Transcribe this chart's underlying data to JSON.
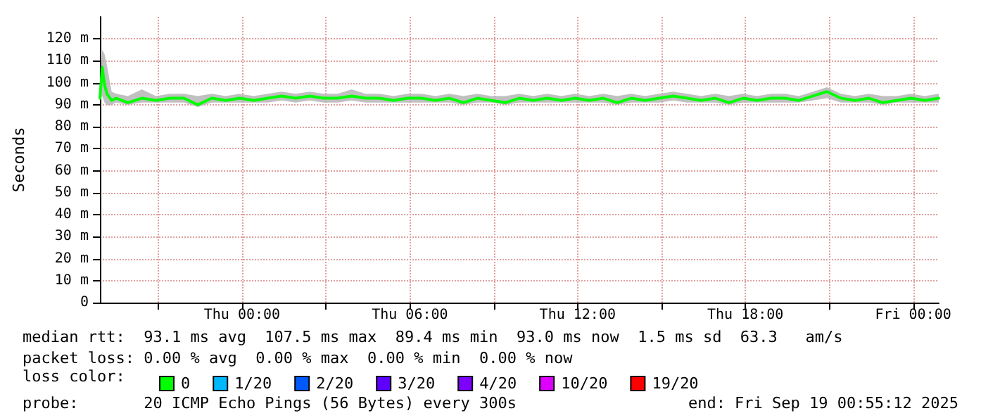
{
  "chart_data": {
    "type": "line",
    "ylabel": "Seconds",
    "legend_title": "loss color:",
    "annotations": [
      "median rtt:  93.1 ms avg  107.5 ms max  89.4 ms min  93.0 ms now  1.5 ms sd  63.3   am/s",
      "packet loss: 0.00 % avg  0.00 % max  0.00 % min  0.00 % now",
      "probe:       20 ICMP Echo Pings (56 Bytes) every 300s",
      "end: Fri Sep 19 00:55:12 2025"
    ],
    "x": [
      "2025-09-17T18:55",
      "2025-09-17T19:00",
      "2025-09-17T19:05",
      "2025-09-17T19:10",
      "2025-09-17T19:20",
      "2025-09-17T19:30",
      "2025-09-17T19:55",
      "2025-09-17T20:25",
      "2025-09-17T20:55",
      "2025-09-17T21:25",
      "2025-09-17T21:55",
      "2025-09-17T22:25",
      "2025-09-17T22:55",
      "2025-09-17T23:25",
      "2025-09-17T23:55",
      "2025-09-18T00:25",
      "2025-09-18T00:55",
      "2025-09-18T01:25",
      "2025-09-18T01:55",
      "2025-09-18T02:25",
      "2025-09-18T02:55",
      "2025-09-18T03:25",
      "2025-09-18T03:55",
      "2025-09-18T04:25",
      "2025-09-18T04:55",
      "2025-09-18T05:25",
      "2025-09-18T05:55",
      "2025-09-18T06:25",
      "2025-09-18T06:55",
      "2025-09-18T07:25",
      "2025-09-18T07:55",
      "2025-09-18T08:25",
      "2025-09-18T08:55",
      "2025-09-18T09:25",
      "2025-09-18T09:55",
      "2025-09-18T10:25",
      "2025-09-18T10:55",
      "2025-09-18T11:25",
      "2025-09-18T11:55",
      "2025-09-18T12:25",
      "2025-09-18T12:55",
      "2025-09-18T13:25",
      "2025-09-18T13:55",
      "2025-09-18T14:25",
      "2025-09-18T14:55",
      "2025-09-18T15:25",
      "2025-09-18T15:55",
      "2025-09-18T16:25",
      "2025-09-18T16:55",
      "2025-09-18T17:25",
      "2025-09-18T17:55",
      "2025-09-18T18:25",
      "2025-09-18T18:55",
      "2025-09-18T19:25",
      "2025-09-18T19:55",
      "2025-09-18T20:25",
      "2025-09-18T20:55",
      "2025-09-18T21:25",
      "2025-09-18T21:55",
      "2025-09-18T22:25",
      "2025-09-18T22:55",
      "2025-09-18T23:25",
      "2025-09-18T23:55",
      "2025-09-19T00:25",
      "2025-09-19T00:55"
    ],
    "series": [
      {
        "name": "0",
        "color": "#00ff00",
        "values": [
          93,
          107,
          99,
          95,
          92,
          93,
          91,
          93,
          92,
          93,
          93,
          90,
          93,
          92,
          93,
          92,
          93,
          94,
          93,
          94,
          93,
          93,
          94,
          93,
          93,
          92,
          93,
          93,
          92,
          93,
          91,
          93,
          92,
          91,
          93,
          92,
          93,
          92,
          93,
          92,
          93,
          91,
          93,
          92,
          93,
          94,
          93,
          92,
          93,
          91,
          93,
          92,
          93,
          93,
          92,
          94,
          96,
          93,
          92,
          93,
          91,
          92,
          93,
          92,
          93
        ],
        "lower": [
          92,
          94,
          91,
          90,
          90,
          91,
          90,
          91,
          91,
          91,
          91,
          89,
          91,
          91,
          91,
          91,
          91,
          92,
          91,
          92,
          91,
          91,
          92,
          91,
          91,
          91,
          91,
          91,
          91,
          91,
          90,
          91,
          91,
          90,
          91,
          91,
          91,
          91,
          91,
          91,
          91,
          90,
          91,
          91,
          91,
          92,
          91,
          91,
          91,
          90,
          91,
          91,
          91,
          91,
          91,
          92,
          93,
          91,
          91,
          91,
          90,
          91,
          91,
          91,
          91
        ],
        "upper": [
          95,
          115,
          113,
          108,
          96,
          95,
          94,
          97,
          94,
          95,
          95,
          94,
          95,
          94,
          95,
          94,
          95,
          96,
          95,
          96,
          95,
          95,
          97,
          95,
          95,
          94,
          95,
          95,
          94,
          95,
          94,
          95,
          94,
          94,
          95,
          94,
          95,
          94,
          95,
          94,
          95,
          94,
          95,
          94,
          95,
          96,
          95,
          94,
          95,
          94,
          95,
          94,
          95,
          95,
          94,
          96,
          98,
          95,
          94,
          95,
          94,
          94,
          95,
          94,
          95
        ]
      },
      {
        "name": "1/20",
        "color": "#00b8ff",
        "values": [
          null,
          null,
          null,
          null,
          null,
          null,
          null,
          null,
          null,
          null,
          null,
          null,
          null,
          null,
          null,
          null,
          null,
          null,
          null,
          null,
          null,
          null,
          null,
          null,
          null,
          null,
          null,
          null,
          null,
          null,
          null,
          null,
          null,
          null,
          null,
          null,
          null,
          null,
          null,
          null,
          null,
          null,
          null,
          null,
          null,
          null,
          null,
          null,
          null,
          null,
          null,
          null,
          null,
          null,
          null,
          null,
          null,
          null,
          null,
          null,
          null,
          null,
          null,
          null,
          null
        ]
      },
      {
        "name": "2/20",
        "color": "#0059ff",
        "values": [
          null,
          null,
          null,
          null,
          null,
          null,
          null,
          null,
          null,
          null,
          null,
          null,
          null,
          null,
          null,
          null,
          null,
          null,
          null,
          null,
          null,
          null,
          null,
          null,
          null,
          null,
          null,
          null,
          null,
          null,
          null,
          null,
          null,
          null,
          null,
          null,
          null,
          null,
          null,
          null,
          null,
          null,
          null,
          null,
          null,
          null,
          null,
          null,
          null,
          null,
          null,
          null,
          null,
          null,
          null,
          null,
          null,
          null,
          null,
          null,
          null,
          null,
          null,
          null,
          null
        ]
      },
      {
        "name": "3/20",
        "color": "#5e00ff",
        "values": [
          null,
          null,
          null,
          null,
          null,
          null,
          null,
          null,
          null,
          null,
          null,
          null,
          null,
          null,
          null,
          null,
          null,
          null,
          null,
          null,
          null,
          null,
          null,
          null,
          null,
          null,
          null,
          null,
          null,
          null,
          null,
          null,
          null,
          null,
          null,
          null,
          null,
          null,
          null,
          null,
          null,
          null,
          null,
          null,
          null,
          null,
          null,
          null,
          null,
          null,
          null,
          null,
          null,
          null,
          null,
          null,
          null,
          null,
          null,
          null,
          null,
          null,
          null,
          null,
          null
        ]
      },
      {
        "name": "4/20",
        "color": "#7e00ff",
        "values": [
          null,
          null,
          null,
          null,
          null,
          null,
          null,
          null,
          null,
          null,
          null,
          null,
          null,
          null,
          null,
          null,
          null,
          null,
          null,
          null,
          null,
          null,
          null,
          null,
          null,
          null,
          null,
          null,
          null,
          null,
          null,
          null,
          null,
          null,
          null,
          null,
          null,
          null,
          null,
          null,
          null,
          null,
          null,
          null,
          null,
          null,
          null,
          null,
          null,
          null,
          null,
          null,
          null,
          null,
          null,
          null,
          null,
          null,
          null,
          null,
          null,
          null,
          null,
          null,
          null
        ]
      },
      {
        "name": "10/20",
        "color": "#dd00ff",
        "values": [
          null,
          null,
          null,
          null,
          null,
          null,
          null,
          null,
          null,
          null,
          null,
          null,
          null,
          null,
          null,
          null,
          null,
          null,
          null,
          null,
          null,
          null,
          null,
          null,
          null,
          null,
          null,
          null,
          null,
          null,
          null,
          null,
          null,
          null,
          null,
          null,
          null,
          null,
          null,
          null,
          null,
          null,
          null,
          null,
          null,
          null,
          null,
          null,
          null,
          null,
          null,
          null,
          null,
          null,
          null,
          null,
          null,
          null,
          null,
          null,
          null,
          null,
          null,
          null,
          null
        ]
      },
      {
        "name": "19/20",
        "color": "#ff0000",
        "values": [
          null,
          null,
          null,
          null,
          null,
          null,
          null,
          null,
          null,
          null,
          null,
          null,
          null,
          null,
          null,
          null,
          null,
          null,
          null,
          null,
          null,
          null,
          null,
          null,
          null,
          null,
          null,
          null,
          null,
          null,
          null,
          null,
          null,
          null,
          null,
          null,
          null,
          null,
          null,
          null,
          null,
          null,
          null,
          null,
          null,
          null,
          null,
          null,
          null,
          null,
          null,
          null,
          null,
          null,
          null,
          null,
          null,
          null,
          null,
          null,
          null,
          null,
          null,
          null,
          null
        ]
      }
    ],
    "xlim": [
      "2025-09-17T18:55",
      "2025-09-19T00:55"
    ],
    "xticks": [
      {
        "value": "2025-09-17T21:00",
        "label": null
      },
      {
        "value": "2025-09-18T00:00",
        "label": "Thu 00:00"
      },
      {
        "value": "2025-09-18T03:00",
        "label": null
      },
      {
        "value": "2025-09-18T06:00",
        "label": "Thu 06:00"
      },
      {
        "value": "2025-09-18T09:00",
        "label": null
      },
      {
        "value": "2025-09-18T12:00",
        "label": "Thu 12:00"
      },
      {
        "value": "2025-09-18T15:00",
        "label": null
      },
      {
        "value": "2025-09-18T18:00",
        "label": "Thu 18:00"
      },
      {
        "value": "2025-09-18T21:00",
        "label": null
      },
      {
        "value": "2025-09-19T00:00",
        "label": "Fri 00:00"
      }
    ],
    "ylim": [
      0,
      130
    ],
    "yticks": [
      0,
      {
        "value": 10,
        "label": "10 m"
      },
      {
        "value": 20,
        "label": "20 m"
      },
      {
        "value": 30,
        "label": "30 m"
      },
      {
        "value": 40,
        "label": "40 m"
      },
      {
        "value": 50,
        "label": "50 m"
      },
      {
        "value": 60,
        "label": "60 m"
      },
      {
        "value": 70,
        "label": "70 m"
      },
      {
        "value": 80,
        "label": "80 m"
      },
      {
        "value": 90,
        "label": "90 m"
      },
      {
        "value": 100,
        "label": "100 m"
      },
      {
        "value": 110,
        "label": "110 m"
      },
      {
        "value": 120,
        "label": "120 m"
      }
    ],
    "grid": true,
    "legend": "bottom left",
    "marker": "none",
    "line_style": "solid"
  }
}
